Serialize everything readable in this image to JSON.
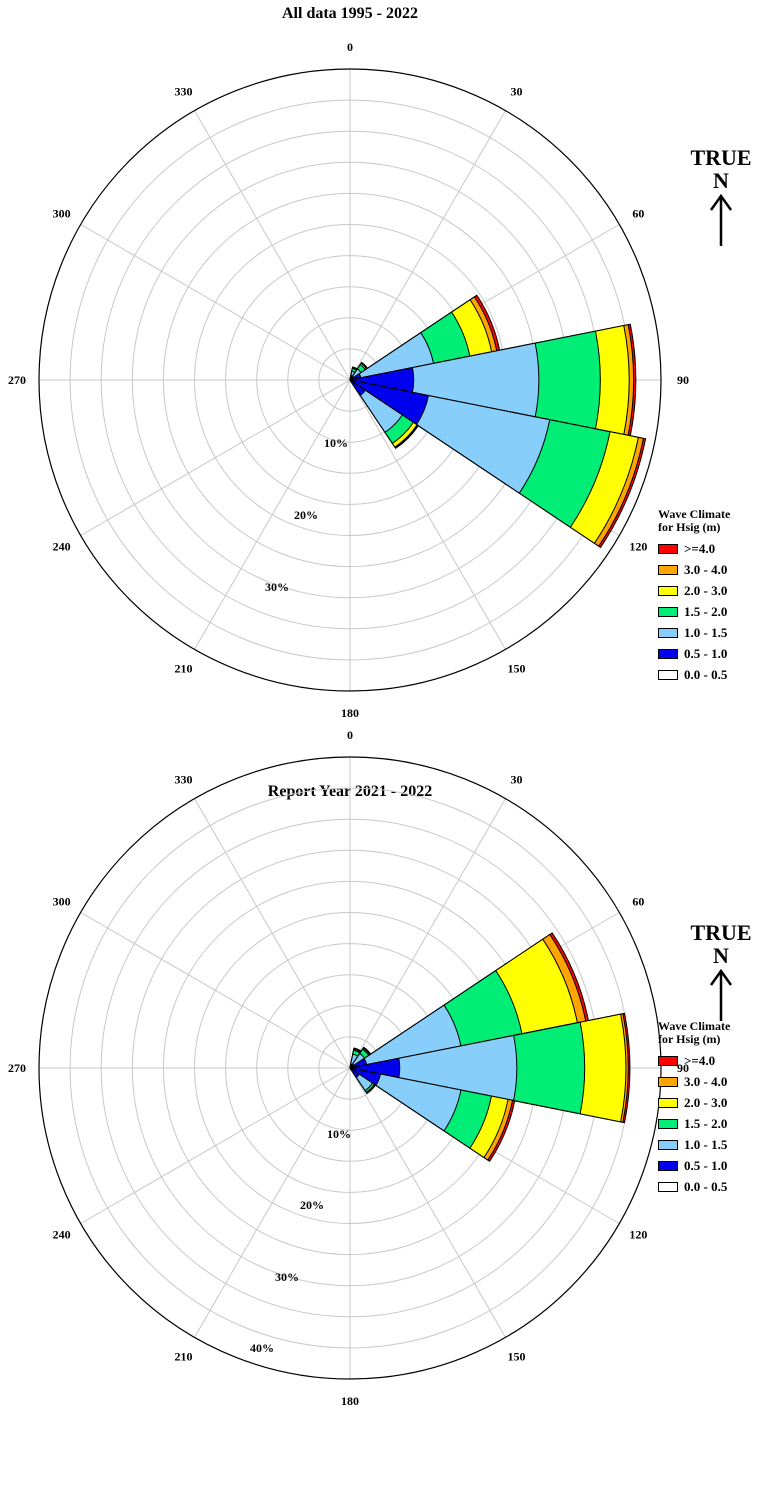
{
  "legend": {
    "title_line1": "Wave Climate",
    "title_line2": "for Hsig (m)",
    "bins": [
      {
        "label": ">=4.0",
        "color": "#ff0000"
      },
      {
        "label": "3.0 - 4.0",
        "color": "#ffa500"
      },
      {
        "label": "2.0 - 3.0",
        "color": "#ffff00"
      },
      {
        "label": "1.5 - 2.0",
        "color": "#00ee76"
      },
      {
        "label": "1.0 - 1.5",
        "color": "#87cefa"
      },
      {
        "label": "0.5 - 1.0",
        "color": "#0000ee"
      },
      {
        "label": "0.0 - 0.5",
        "color": "#ffffff"
      }
    ]
  },
  "north_indicator": {
    "line1": "TRUE",
    "line2": "N"
  },
  "chart_data": [
    {
      "type": "rose",
      "title": "All data 1995 - 2022",
      "direction_labels": [
        "0",
        "30",
        "60",
        "90",
        "120",
        "150",
        "180",
        "210",
        "240",
        "270",
        "300",
        "330"
      ],
      "radial_labels": [
        "10%",
        "20%",
        "30%"
      ],
      "radial_max": 42,
      "ring_step": 4.2,
      "sector_width_deg": 22.5,
      "bin_order": [
        "0.0 - 0.5",
        "0.5 - 1.0",
        "1.0 - 1.5",
        "1.5 - 2.0",
        "2.0 - 3.0",
        "3.0 - 4.0",
        ">=4.0"
      ],
      "sectors": [
        {
          "direction": 22.5,
          "cumulative": [
            0.3,
            0.6,
            1.2,
            1.6,
            1.7,
            1.75,
            1.8
          ]
        },
        {
          "direction": 45,
          "cumulative": [
            0.3,
            0.6,
            1.8,
            2.5,
            2.7,
            2.8,
            2.85
          ]
        },
        {
          "direction": 67.5,
          "cumulative": [
            0.5,
            1.5,
            11.5,
            16.5,
            19.5,
            20.2,
            20.6
          ]
        },
        {
          "direction": 90,
          "cumulative": [
            0.5,
            8.6,
            25.5,
            33.8,
            37.7,
            38.3,
            38.6
          ]
        },
        {
          "direction": 112.5,
          "cumulative": [
            0.5,
            10.8,
            27.5,
            35.8,
            39.7,
            40.4,
            40.7
          ]
        },
        {
          "direction": 135,
          "cumulative": [
            0.3,
            2.5,
            8.5,
            10.3,
            10.9,
            11.0,
            11.1
          ]
        }
      ]
    },
    {
      "type": "rose",
      "title": "Report Year 2021 - 2022",
      "direction_labels": [
        "0",
        "30",
        "60",
        "90",
        "120",
        "150",
        "180",
        "210",
        "240",
        "270",
        "300",
        "330"
      ],
      "radial_labels": [
        "10%",
        "20%",
        "30%",
        "40%"
      ],
      "radial_max": 55,
      "ring_step": 5.5,
      "sector_width_deg": 22.5,
      "bin_order": [
        "0.0 - 0.5",
        "0.5 - 1.0",
        "1.0 - 1.5",
        "1.5 - 2.0",
        "2.0 - 3.0",
        "3.0 - 4.0",
        ">=4.0"
      ],
      "sectors": [
        {
          "direction": 22.5,
          "cumulative": [
            0.3,
            0.7,
            2.5,
            3.2,
            3.4,
            3.5,
            3.6
          ]
        },
        {
          "direction": 45,
          "cumulative": [
            0.3,
            0.8,
            3.1,
            4.0,
            4.2,
            4.3,
            4.4
          ]
        },
        {
          "direction": 67.5,
          "cumulative": [
            0.5,
            3.0,
            20.0,
            31.0,
            41.0,
            42.5,
            43.0
          ]
        },
        {
          "direction": 90,
          "cumulative": [
            0.5,
            8.8,
            29.5,
            41.5,
            48.8,
            49.2,
            49.5
          ]
        },
        {
          "direction": 112.5,
          "cumulative": [
            0.4,
            5.5,
            20.0,
            25.5,
            28.5,
            29.3,
            29.7
          ]
        },
        {
          "direction": 135,
          "cumulative": [
            0.3,
            2.0,
            4.8,
            5.2,
            5.3,
            5.35,
            5.4
          ]
        }
      ]
    }
  ]
}
